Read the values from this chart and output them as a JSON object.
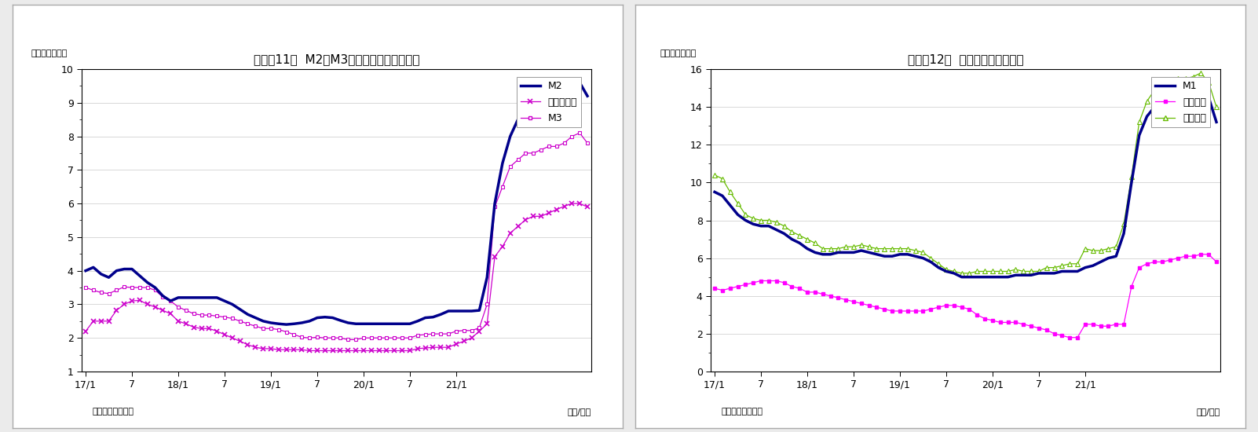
{
  "chart1": {
    "title": "（図表11）  M2、M3、広義流動性の伸び率",
    "ylabel": "（前年比、％）",
    "xlabel_right": "（年/月）",
    "xlabel_left": "（資料）日本銀行",
    "ylim": [
      1,
      10
    ],
    "yticks": [
      1,
      2,
      3,
      4,
      5,
      6,
      7,
      8,
      9,
      10
    ],
    "M2": [
      4.0,
      4.1,
      3.9,
      3.8,
      4.0,
      4.05,
      4.05,
      3.85,
      3.65,
      3.5,
      3.25,
      3.1,
      3.2,
      3.2,
      3.2,
      3.2,
      3.2,
      3.2,
      3.1,
      3.0,
      2.85,
      2.7,
      2.6,
      2.5,
      2.45,
      2.42,
      2.4,
      2.42,
      2.45,
      2.5,
      2.6,
      2.62,
      2.6,
      2.52,
      2.45,
      2.42,
      2.42,
      2.42,
      2.42,
      2.42,
      2.42,
      2.42,
      2.42,
      2.5,
      2.6,
      2.62,
      2.7,
      2.8,
      2.8,
      2.8,
      2.8,
      2.82,
      3.8,
      6.0,
      7.2,
      8.0,
      8.5,
      9.0,
      9.0,
      9.1,
      9.0,
      9.0,
      9.0,
      9.2,
      9.6,
      9.2
    ],
    "M3": [
      3.5,
      3.42,
      3.35,
      3.32,
      3.42,
      3.52,
      3.5,
      3.5,
      3.5,
      3.42,
      3.22,
      3.1,
      2.92,
      2.82,
      2.72,
      2.68,
      2.68,
      2.65,
      2.62,
      2.58,
      2.5,
      2.42,
      2.35,
      2.28,
      2.28,
      2.25,
      2.18,
      2.1,
      2.02,
      2.0,
      2.02,
      2.0,
      2.0,
      2.0,
      1.95,
      1.95,
      2.0,
      2.0,
      2.0,
      2.0,
      2.0,
      2.0,
      2.0,
      2.08,
      2.1,
      2.12,
      2.12,
      2.12,
      2.2,
      2.22,
      2.22,
      2.3,
      3.0,
      5.9,
      6.5,
      7.1,
      7.3,
      7.5,
      7.5,
      7.6,
      7.7,
      7.7,
      7.8,
      8.0,
      8.1,
      7.8
    ],
    "広義流動性": [
      2.2,
      2.5,
      2.5,
      2.5,
      2.82,
      3.0,
      3.1,
      3.12,
      3.0,
      2.92,
      2.82,
      2.72,
      2.5,
      2.42,
      2.32,
      2.28,
      2.28,
      2.2,
      2.1,
      2.0,
      1.9,
      1.8,
      1.72,
      1.68,
      1.68,
      1.65,
      1.65,
      1.65,
      1.65,
      1.62,
      1.62,
      1.62,
      1.62,
      1.62,
      1.62,
      1.62,
      1.62,
      1.62,
      1.62,
      1.62,
      1.62,
      1.62,
      1.62,
      1.68,
      1.7,
      1.72,
      1.72,
      1.72,
      1.82,
      1.9,
      2.0,
      2.2,
      2.42,
      4.42,
      4.72,
      5.12,
      5.32,
      5.52,
      5.62,
      5.62,
      5.72,
      5.82,
      5.92,
      6.0,
      6.0,
      5.9
    ],
    "M2_color": "#00008B",
    "M3_color": "#CC00CC",
    "広義流動性_color": "#CC00CC"
  },
  "chart2": {
    "title": "（図表12）  現金・領金の伸び率",
    "ylabel": "（前年比、％）",
    "xlabel_right": "（年/月）",
    "xlabel_left": "（資料）日本銀行",
    "ylim": [
      0,
      16
    ],
    "yticks": [
      0,
      2,
      4,
      6,
      8,
      10,
      12,
      14,
      16
    ],
    "M1": [
      9.5,
      9.3,
      8.8,
      8.3,
      8.0,
      7.8,
      7.7,
      7.7,
      7.5,
      7.3,
      7.0,
      6.8,
      6.5,
      6.3,
      6.2,
      6.2,
      6.3,
      6.3,
      6.3,
      6.4,
      6.3,
      6.2,
      6.1,
      6.1,
      6.2,
      6.2,
      6.1,
      6.0,
      5.8,
      5.5,
      5.3,
      5.2,
      5.0,
      5.0,
      5.0,
      5.0,
      5.0,
      5.0,
      5.0,
      5.1,
      5.1,
      5.1,
      5.2,
      5.2,
      5.2,
      5.3,
      5.3,
      5.3,
      5.5,
      5.6,
      5.8,
      6.0,
      6.1,
      7.3,
      10.0,
      12.5,
      13.5,
      14.0,
      14.3,
      14.3,
      14.1,
      14.5,
      14.7,
      14.7,
      14.5,
      13.2
    ],
    "現金通貨": [
      4.4,
      4.3,
      4.4,
      4.5,
      4.6,
      4.7,
      4.8,
      4.8,
      4.8,
      4.7,
      4.5,
      4.4,
      4.2,
      4.2,
      4.1,
      4.0,
      3.9,
      3.8,
      3.7,
      3.6,
      3.5,
      3.4,
      3.3,
      3.2,
      3.2,
      3.2,
      3.2,
      3.2,
      3.3,
      3.4,
      3.5,
      3.5,
      3.4,
      3.3,
      3.0,
      2.8,
      2.7,
      2.6,
      2.6,
      2.6,
      2.5,
      2.4,
      2.3,
      2.2,
      2.0,
      1.9,
      1.8,
      1.8,
      2.5,
      2.5,
      2.4,
      2.4,
      2.5,
      2.5,
      4.5,
      5.5,
      5.7,
      5.8,
      5.8,
      5.9,
      6.0,
      6.1,
      6.1,
      6.2,
      6.2,
      5.8
    ],
    "預金通貨": [
      10.4,
      10.2,
      9.5,
      8.9,
      8.3,
      8.1,
      8.0,
      8.0,
      7.9,
      7.7,
      7.4,
      7.2,
      7.0,
      6.8,
      6.5,
      6.5,
      6.5,
      6.6,
      6.6,
      6.7,
      6.6,
      6.5,
      6.5,
      6.5,
      6.5,
      6.5,
      6.4,
      6.3,
      6.0,
      5.7,
      5.4,
      5.3,
      5.2,
      5.2,
      5.3,
      5.3,
      5.3,
      5.3,
      5.3,
      5.4,
      5.3,
      5.3,
      5.3,
      5.5,
      5.5,
      5.6,
      5.7,
      5.7,
      6.5,
      6.4,
      6.4,
      6.5,
      6.6,
      7.8,
      10.3,
      13.2,
      14.3,
      14.9,
      15.3,
      15.4,
      15.5,
      15.5,
      15.6,
      15.8,
      15.3,
      14.0
    ],
    "M1_color": "#00008B",
    "現金通貨_color": "#FF00FF",
    "預金通貨_color": "#66BB00"
  },
  "n_points": 66,
  "background_color": "#EBEBEB",
  "panel_bg": "#FFFFFF",
  "border_color": "#CCCCCC"
}
